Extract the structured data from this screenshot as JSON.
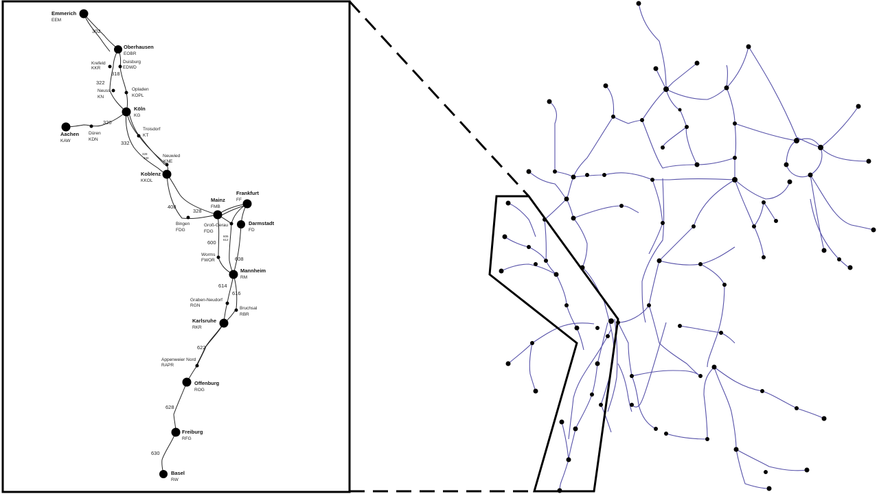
{
  "detail_map": {
    "stations": [
      {
        "name": "Emmerich",
        "code": "EEM",
        "major": true
      },
      {
        "name": "Oberhausen",
        "code": "EOBR",
        "major": true
      },
      {
        "name": "Krefeld",
        "code": "KKR",
        "major": false
      },
      {
        "name": "Duisburg",
        "code": "EDWD",
        "major": false
      },
      {
        "name": "Neuss",
        "code": "KN",
        "major": false
      },
      {
        "name": "Opladen",
        "code": "KOPL",
        "major": false
      },
      {
        "name": "Köln",
        "code": "KG",
        "major": true
      },
      {
        "name": "Aachen",
        "code": "KAW",
        "major": true
      },
      {
        "name": "Düren",
        "code": "KDN",
        "major": false
      },
      {
        "name": "Troisdorf",
        "code": "KT",
        "major": false
      },
      {
        "name": "Neuwied",
        "code": "KNE",
        "major": false
      },
      {
        "name": "Koblenz",
        "code": "KKOL",
        "major": true
      },
      {
        "name": "Mainz",
        "code": "FMB",
        "major": true
      },
      {
        "name": "Frankfurt",
        "code": "FF",
        "major": true
      },
      {
        "name": "Bingen",
        "code": "FDG",
        "major": false
      },
      {
        "name": "Groß-Gerau",
        "code": "FDG",
        "major": false
      },
      {
        "name": "Darmstadt",
        "code": "FD",
        "major": true
      },
      {
        "name": "Worms",
        "code": "FWOR",
        "major": false
      },
      {
        "name": "Mannheim",
        "code": "RM",
        "major": true
      },
      {
        "name": "Graben-Neudorf",
        "code": "RGN",
        "major": false
      },
      {
        "name": "Bruchsal",
        "code": "RBR",
        "major": false
      },
      {
        "name": "Karlsruhe",
        "code": "RKR",
        "major": true
      },
      {
        "name": "Appenweier Nord",
        "code": "RAPR",
        "major": false
      },
      {
        "name": "Offenburg",
        "code": "ROG",
        "major": true
      },
      {
        "name": "Freiburg",
        "code": "RFG",
        "major": true
      },
      {
        "name": "Basel",
        "code": "RW",
        "major": true
      }
    ],
    "line_numbers": [
      "302",
      "318",
      "322",
      "320",
      "332",
      "328",
      "330",
      "408",
      "328",
      "600",
      "608",
      "606",
      "612",
      "614",
      "616",
      "622",
      "628",
      "630"
    ]
  }
}
